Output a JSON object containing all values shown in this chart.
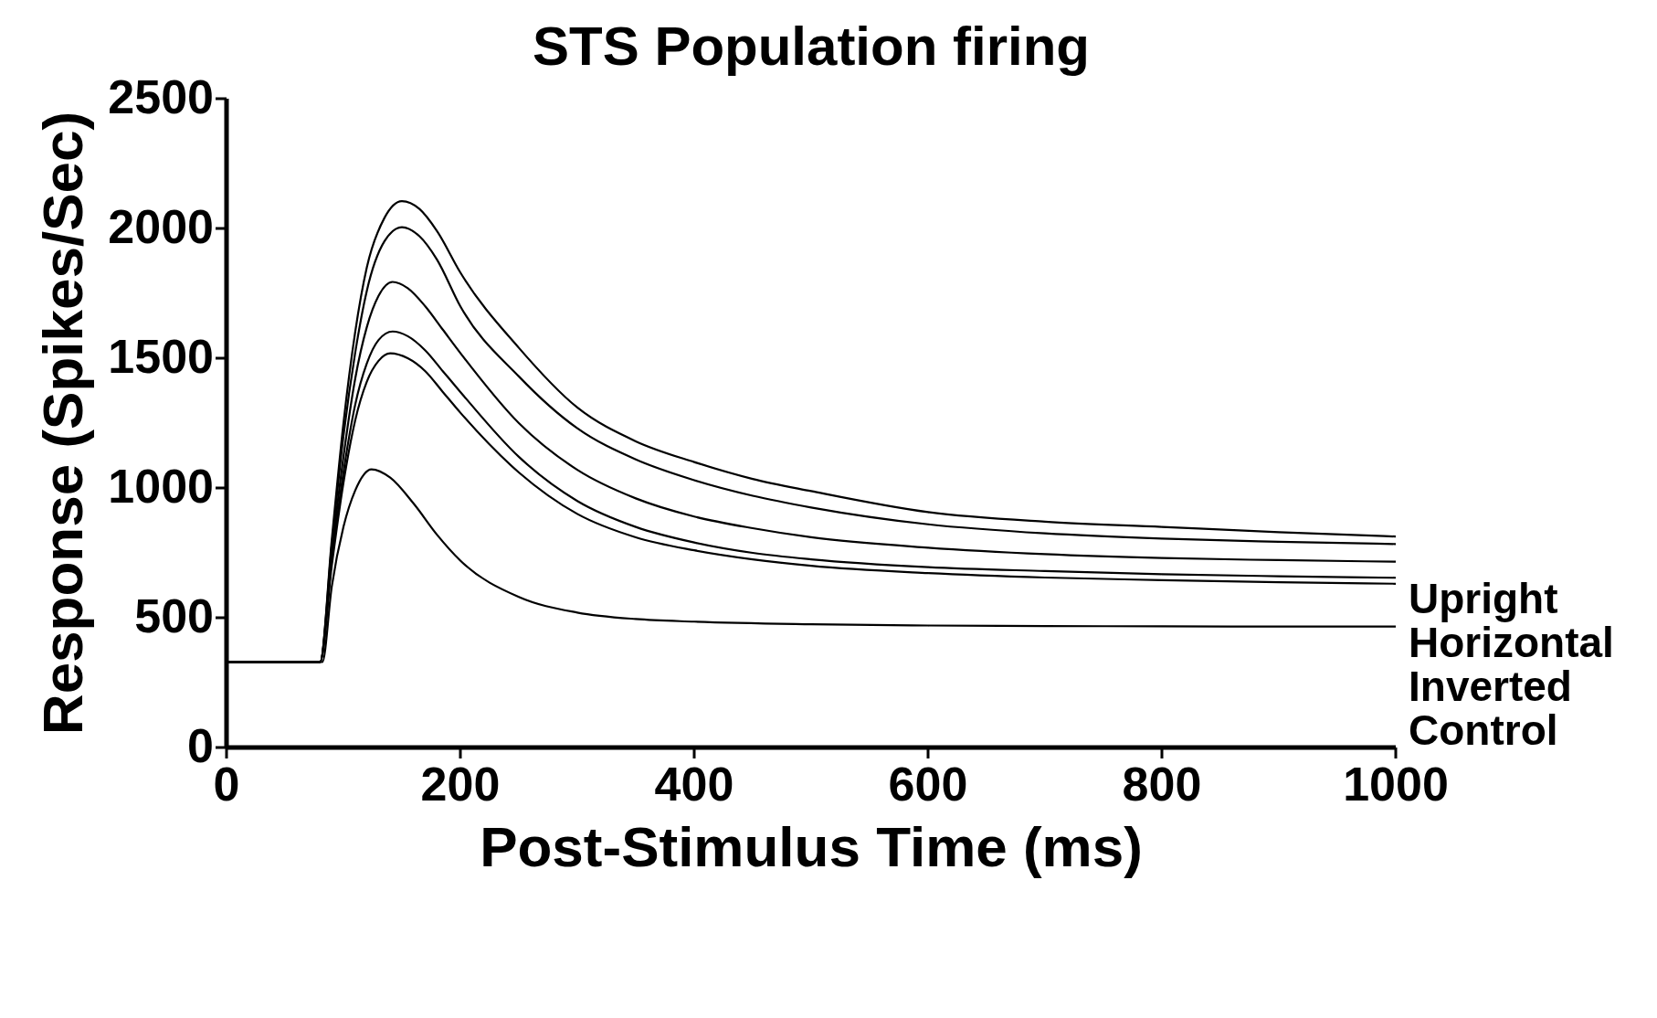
{
  "chart_data": {
    "type": "line",
    "title": "STS Population firing",
    "xlabel": "Post-Stimulus Time (ms)",
    "ylabel": "Response (Spikes/Sec)",
    "xlim": [
      0,
      1000
    ],
    "xticks": [
      0,
      200,
      400,
      600,
      800,
      1000
    ],
    "ylim": [
      0,
      2500
    ],
    "yticks": [
      0,
      500,
      1000,
      1500,
      2000,
      2500
    ],
    "marker": "none",
    "line_style": "solid",
    "series": [
      {
        "name": "Upright",
        "color": "#000000",
        "x": [
          0,
          80,
          90,
          100,
          110,
          120,
          135,
          150,
          165,
          180,
          200,
          250,
          300,
          350,
          400,
          450,
          500,
          600,
          700,
          800,
          900,
          1000
        ],
        "values": [
          330,
          330,
          800,
          1250,
          1600,
          1850,
          2040,
          2105,
          2075,
          1990,
          1830,
          1540,
          1310,
          1180,
          1100,
          1035,
          988,
          907,
          870,
          850,
          830,
          813
        ]
      },
      {
        "color": "#000000",
        "x": [
          0,
          80,
          90,
          100,
          110,
          120,
          135,
          150,
          165,
          180,
          200,
          250,
          300,
          350,
          400,
          450,
          500,
          600,
          700,
          800,
          900,
          1000
        ],
        "values": [
          330,
          330,
          780,
          1200,
          1520,
          1760,
          1950,
          2005,
          1970,
          1880,
          1700,
          1430,
          1230,
          1110,
          1030,
          970,
          925,
          860,
          825,
          805,
          793,
          784
        ]
      },
      {
        "name": "Horizontal",
        "color": "#000000",
        "x": [
          0,
          80,
          90,
          100,
          110,
          120,
          130,
          142,
          155,
          170,
          185,
          200,
          250,
          300,
          350,
          400,
          450,
          500,
          600,
          700,
          800,
          900,
          1000
        ],
        "values": [
          330,
          330,
          750,
          1120,
          1420,
          1620,
          1740,
          1794,
          1770,
          1700,
          1610,
          1520,
          1250,
          1070,
          960,
          890,
          845,
          810,
          770,
          745,
          730,
          722,
          716
        ]
      },
      {
        "color": "#000000",
        "x": [
          0,
          80,
          90,
          100,
          110,
          120,
          130,
          142,
          155,
          170,
          185,
          200,
          250,
          300,
          350,
          400,
          450,
          500,
          600,
          700,
          800,
          900,
          1000
        ],
        "values": [
          330,
          330,
          720,
          1060,
          1320,
          1480,
          1570,
          1603,
          1585,
          1530,
          1450,
          1370,
          1120,
          950,
          850,
          790,
          750,
          725,
          695,
          680,
          668,
          660,
          654
        ]
      },
      {
        "name": "Inverted",
        "color": "#000000",
        "x": [
          0,
          80,
          90,
          100,
          110,
          120,
          130,
          140,
          155,
          170,
          185,
          200,
          250,
          300,
          350,
          400,
          450,
          500,
          600,
          700,
          800,
          900,
          1000
        ],
        "values": [
          330,
          330,
          700,
          1020,
          1260,
          1410,
          1490,
          1519,
          1500,
          1450,
          1370,
          1290,
          1060,
          900,
          810,
          760,
          725,
          700,
          672,
          655,
          645,
          637,
          631
        ]
      },
      {
        "name": "Control",
        "color": "#000000",
        "x": [
          0,
          82,
          90,
          100,
          110,
          124,
          140,
          160,
          180,
          200,
          250,
          300,
          350,
          400,
          500,
          600,
          700,
          800,
          900,
          1000
        ],
        "values": [
          330,
          330,
          620,
          850,
          990,
          1072,
          1040,
          940,
          820,
          720,
          580,
          520,
          495,
          485,
          475,
          470,
          468,
          467,
          466,
          466
        ]
      }
    ]
  }
}
